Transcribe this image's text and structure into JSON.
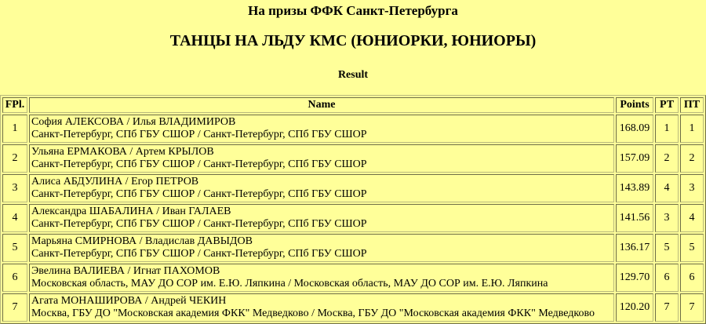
{
  "page": {
    "title": "На призы ФФК Санкт-Петербурга",
    "subtitle": "ТАНЦЫ НА ЛЬДУ КМС (ЮНИОРКИ, ЮНИОРЫ)",
    "section_label": "Result",
    "background_color": "#FFFF99",
    "border_dark_color": "#6e6e46",
    "border_light_color": "#b9b97c",
    "text_color": "#000000"
  },
  "results_table": {
    "headers": {
      "fpl": "FPl.",
      "name": "Name",
      "points": "Points",
      "rt": "РТ",
      "pt": "ПТ"
    },
    "rows": [
      {
        "fpl": "1",
        "names": "София АЛЕКСОВА / Илья ВЛАДИМИРОВ",
        "clubs": "Санкт-Петербург, СПб ГБУ СШОР / Санкт-Петербург, СПб ГБУ СШОР",
        "points": "168.09",
        "rt": "1",
        "pt": "1"
      },
      {
        "fpl": "2",
        "names": "Ульяна ЕРМАКОВА / Артем КРЫЛОВ",
        "clubs": "Санкт-Петербург, СПб ГБУ СШОР / Санкт-Петербург, СПб ГБУ СШОР",
        "points": "157.09",
        "rt": "2",
        "pt": "2"
      },
      {
        "fpl": "3",
        "names": "Алиса АБДУЛИНА / Егор ПЕТРОВ",
        "clubs": "Санкт-Петербург, СПб ГБУ СШОР / Санкт-Петербург, СПб ГБУ СШОР",
        "points": "143.89",
        "rt": "4",
        "pt": "3"
      },
      {
        "fpl": "4",
        "names": "Александра ШАБАЛИНА / Иван ГАЛАЕВ",
        "clubs": "Санкт-Петербург, СПб ГБУ СШОР / Санкт-Петербург, СПб ГБУ СШОР",
        "points": "141.56",
        "rt": "3",
        "pt": "4"
      },
      {
        "fpl": "5",
        "names": "Марьяна СМИРНОВА / Владислав ДАВЫДОВ",
        "clubs": "Санкт-Петербург, СПб ГБУ СШОР / Санкт-Петербург, СПб ГБУ СШОР",
        "points": "136.17",
        "rt": "5",
        "pt": "5"
      },
      {
        "fpl": "6",
        "names": "Эвелина ВАЛИЕВА / Игнат ПАХОМОВ",
        "clubs": "Московская область, МАУ ДО СОР им. Е.Ю. Ляпкина / Московская область, МАУ ДО СОР им. Е.Ю. Ляпкина",
        "points": "129.70",
        "rt": "6",
        "pt": "6"
      },
      {
        "fpl": "7",
        "names": "Агата МОНАШИРОВА / Андрей ЧЕКИН",
        "clubs": "Москва, ГБУ ДО \"Московская академия ФКК\" Медведково / Москва, ГБУ ДО \"Московская академия ФКК\" Медведково",
        "points": "120.20",
        "rt": "7",
        "pt": "7"
      }
    ]
  }
}
